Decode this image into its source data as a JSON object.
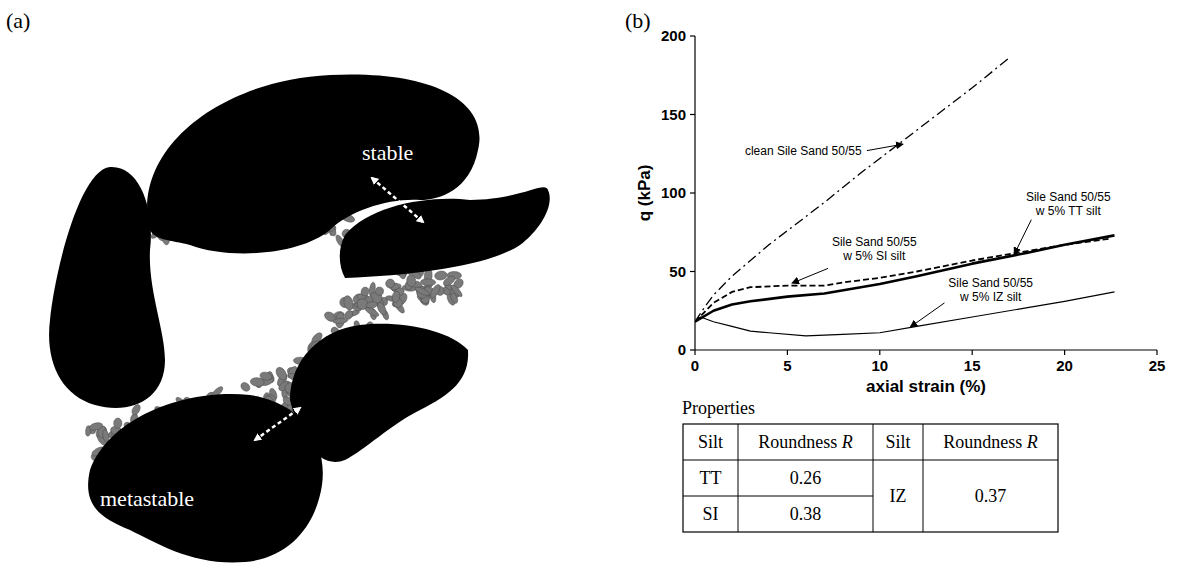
{
  "panels": [
    "(a)",
    "(b)"
  ],
  "diagram": {
    "labels": [
      "stable",
      "metastable"
    ]
  },
  "chart_data": {
    "type": "line",
    "x_label": "axial strain (%)",
    "y_label": "q (kPa)",
    "xlim": [
      0,
      25
    ],
    "ylim": [
      0,
      200
    ],
    "xticks": [
      0,
      5,
      10,
      15,
      20,
      25
    ],
    "yticks": [
      0,
      50,
      100,
      150,
      200
    ],
    "grid": false,
    "series": [
      {
        "name": "clean Sile Sand 50/55",
        "color": "#000000",
        "line_style": "dashdot",
        "x": [
          0,
          0.5,
          1,
          2,
          3,
          4,
          5,
          7,
          9,
          11,
          13,
          15,
          17
        ],
        "values": [
          18,
          27,
          35,
          47,
          57,
          67,
          76,
          94,
          113,
          131,
          149,
          167,
          186
        ]
      },
      {
        "name": "Sile Sand 50/55\nw 5% SI silt",
        "color": "#000000",
        "line_style": "dashed",
        "x": [
          0,
          1,
          2,
          3,
          5,
          7,
          8,
          10,
          12,
          15,
          18,
          20,
          22.5
        ],
        "values": [
          18,
          30,
          37,
          40,
          41,
          41,
          43,
          46,
          50,
          57,
          63,
          67,
          71
        ]
      },
      {
        "name": "Sile Sand 50/55\nw 5% TT silt",
        "color": "#000000",
        "line_style": "thick",
        "x": [
          0,
          1,
          2,
          3,
          5,
          7,
          10,
          12,
          15,
          18,
          20,
          22.7
        ],
        "values": [
          18,
          25,
          29,
          31,
          34,
          36,
          42,
          47,
          55,
          62,
          67,
          73
        ]
      },
      {
        "name": "Sile Sand 50/55\nw 5% IZ silt",
        "color": "#000000",
        "line_style": "solid",
        "x": [
          0,
          0.3,
          1,
          2,
          3,
          4,
          6,
          8,
          10,
          12,
          15,
          18,
          20,
          22.7
        ],
        "values": [
          18,
          21,
          18,
          15,
          12,
          11,
          9,
          10,
          11,
          15,
          21,
          27,
          31,
          37
        ]
      }
    ]
  },
  "properties": {
    "title": "Properties",
    "table": {
      "header": [
        "Silt",
        "Roundness R",
        "Silt",
        "Roundness R"
      ],
      "rows": [
        [
          "TT",
          0.26,
          "IZ",
          0.37
        ],
        [
          "SI",
          0.38,
          null,
          null
        ]
      ]
    }
  }
}
